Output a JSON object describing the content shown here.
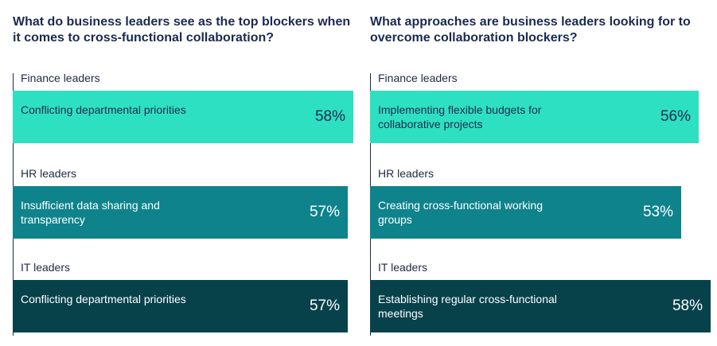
{
  "chart_data": [
    {
      "type": "bar",
      "orientation": "horizontal",
      "title": "What do business leaders see as the top blockers when it comes to cross-functional collaboration?",
      "groups": [
        "Finance leaders",
        "HR leaders",
        "IT leaders"
      ],
      "categories": [
        "Conflicting departmental priorities",
        "Insufficient data sharing and transparency",
        "Conflicting departmental priorities"
      ],
      "values": [
        58,
        57,
        57
      ],
      "value_labels": [
        "58%",
        "57%",
        "57%"
      ],
      "colors": [
        "#2ee0c2",
        "#0f838c",
        "#07424b"
      ]
    },
    {
      "type": "bar",
      "orientation": "horizontal",
      "title": "What approaches are business leaders looking for to overcome collaboration blockers?",
      "groups": [
        "Finance leaders",
        "HR leaders",
        "IT leaders"
      ],
      "categories": [
        "Implementing flexible budgets for collaborative projects",
        "Creating cross-functional working groups",
        "Establishing regular cross-functional meetings"
      ],
      "values": [
        56,
        53,
        58
      ],
      "value_labels": [
        "56%",
        "53%",
        "58%"
      ],
      "colors": [
        "#2ee0c2",
        "#0f838c",
        "#07424b"
      ]
    }
  ]
}
